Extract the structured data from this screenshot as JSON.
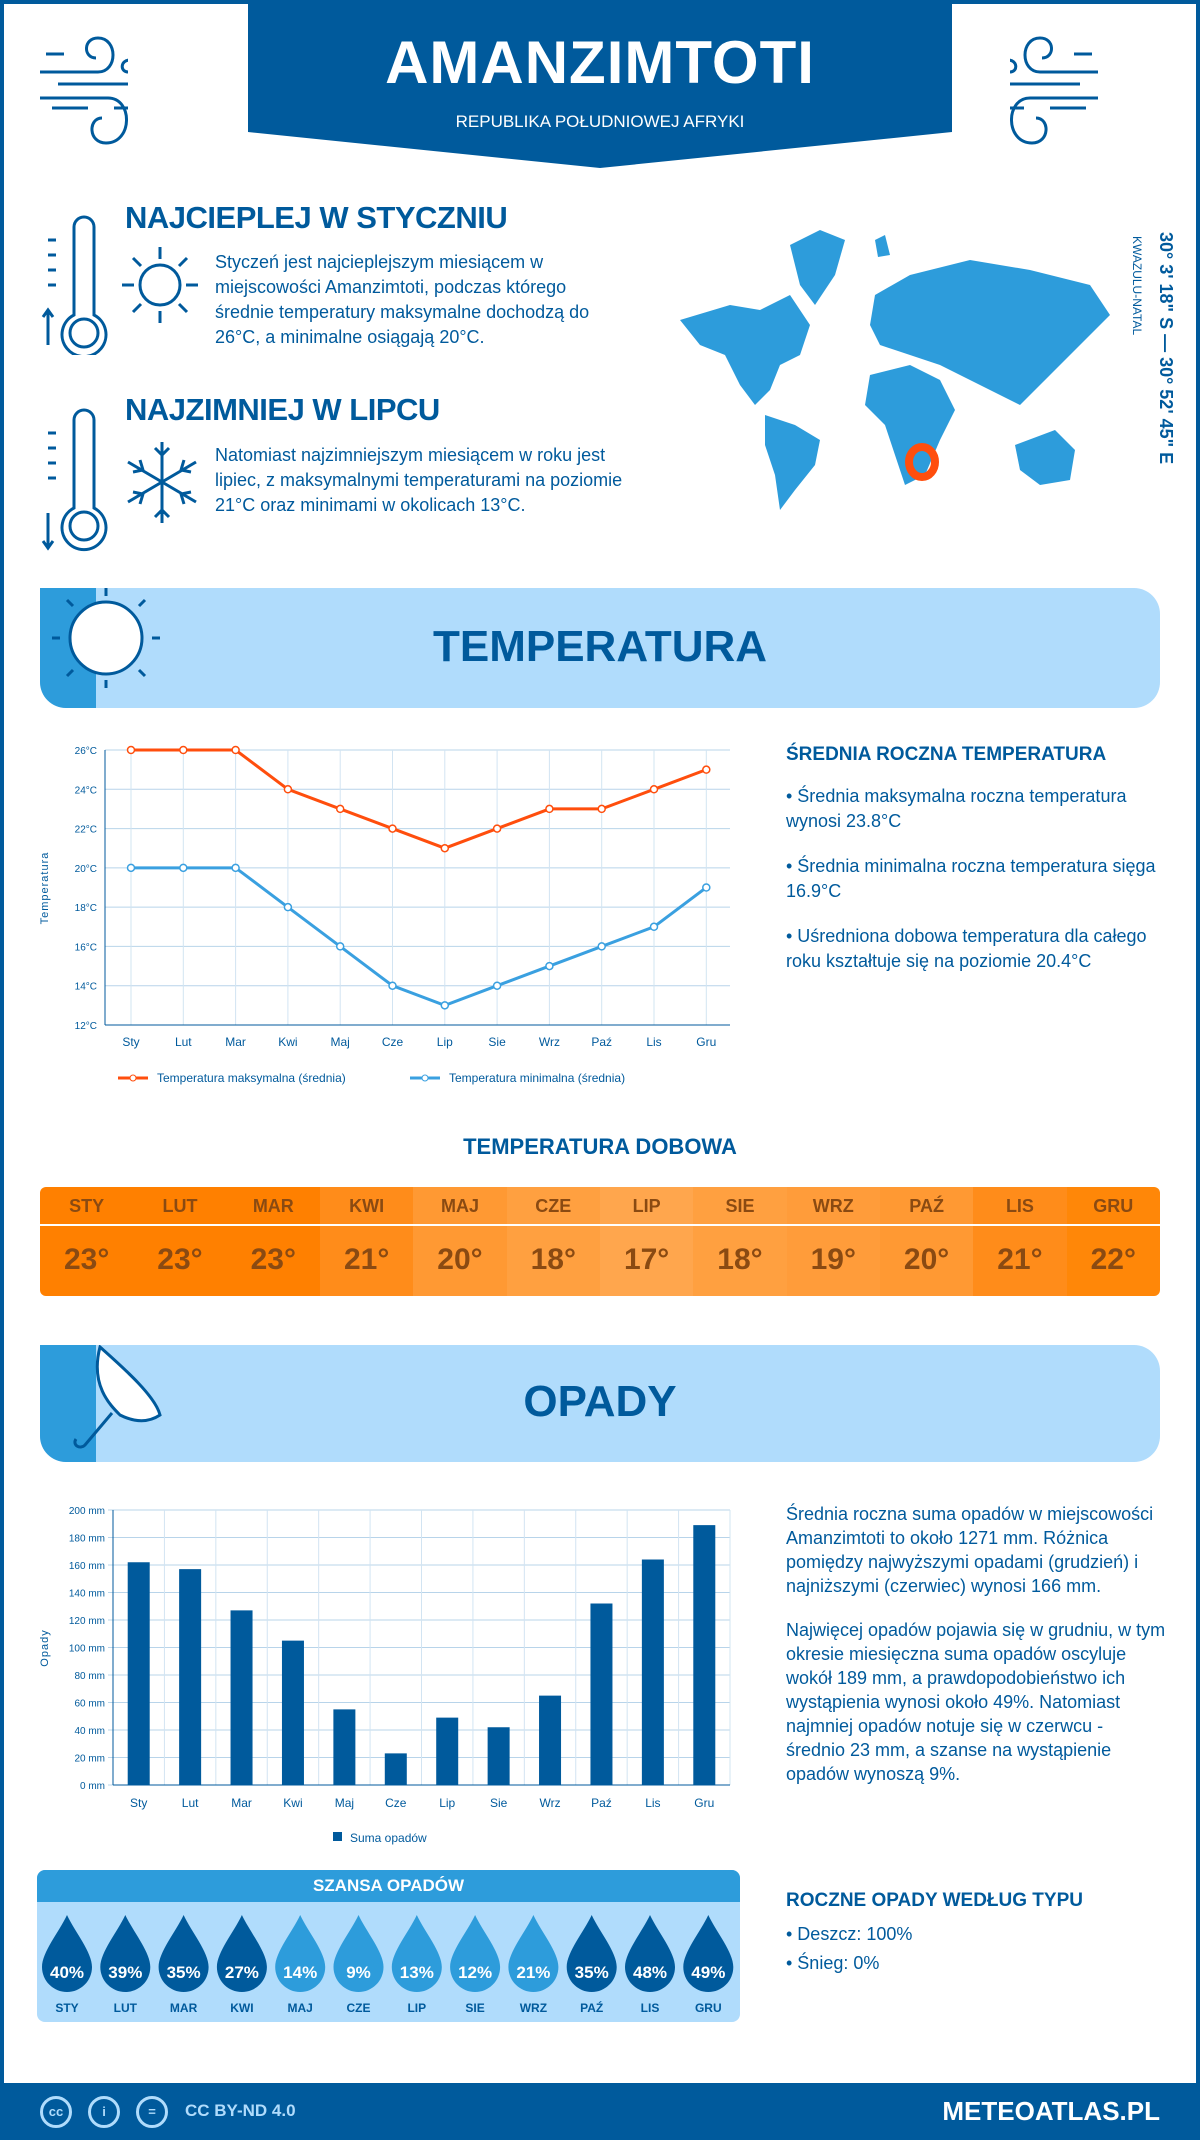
{
  "header": {
    "title": "AMANZIMTOTI",
    "subtitle": "REPUBLIKA POŁUDNIOWEJ AFRYKI"
  },
  "location": {
    "coordinates": "30° 3' 18\" S — 30° 52' 45\" E",
    "region": "KWAZULU-NATAL",
    "marker_color": "#ff4e0d"
  },
  "warmest": {
    "heading": "NAJCIEPLEJ W STYCZNIU",
    "text": "Styczeń jest najcieplejszym miesiącem w miejscowości Amanzimtoti, podczas którego średnie temperatury maksymalne dochodzą do 26°C, a minimalne osiągają 20°C."
  },
  "coldest": {
    "heading": "NAJZIMNIEJ W LIPCU",
    "text": "Natomiast najzimniejszym miesiącem w roku jest lipiec, z maksymalnymi temperaturami na poziomie 21°C oraz minimami w okolicach 13°C."
  },
  "temperature": {
    "banner": "TEMPERATURA",
    "side_heading": "ŚREDNIA ROCZNA TEMPERATURA",
    "bullets": [
      "• Średnia maksymalna roczna temperatura wynosi 23.8°C",
      "• Średnia minimalna roczna temperatura sięga 16.9°C",
      "• Uśredniona dobowa temperatura dla całego roku kształtuje się na poziomie 20.4°C"
    ],
    "daily_heading": "TEMPERATURA DOBOWA",
    "daily": [
      {
        "m": "STY",
        "v": "23°",
        "color": "#ff8000"
      },
      {
        "m": "LUT",
        "v": "23°",
        "color": "#ff8000"
      },
      {
        "m": "MAR",
        "v": "23°",
        "color": "#ff8000"
      },
      {
        "m": "KWI",
        "v": "21°",
        "color": "#ff8c1a"
      },
      {
        "m": "MAJ",
        "v": "20°",
        "color": "#ff9933"
      },
      {
        "m": "CZE",
        "v": "18°",
        "color": "#ffa040"
      },
      {
        "m": "LIP",
        "v": "17°",
        "color": "#ffa64d"
      },
      {
        "m": "SIE",
        "v": "18°",
        "color": "#ffa040"
      },
      {
        "m": "WRZ",
        "v": "19°",
        "color": "#ff9c3a"
      },
      {
        "m": "PAŹ",
        "v": "20°",
        "color": "#ff9933"
      },
      {
        "m": "LIS",
        "v": "21°",
        "color": "#ff8c1a"
      },
      {
        "m": "GRU",
        "v": "22°",
        "color": "#ff8708"
      }
    ]
  },
  "precip": {
    "banner": "OPADY",
    "text1": "Średnia roczna suma opadów w miejscowości Amanzimtoti to około 1271 mm. Różnica pomiędzy najwyższymi opadami (grudzień) i najniższymi (czerwiec) wynosi 166 mm.",
    "text2": "Najwięcej opadów pojawia się w grudniu, w tym okresie miesięczna suma opadów oscyluje wokół 189 mm, a prawdopodobieństwo ich wystąpienia wynosi około 49%. Natomiast najmniej opadów notuje się w czerwcu - średnio 23 mm, a szanse na wystąpienie opadów wynoszą 9%.",
    "type_heading": "ROCZNE OPADY WEDŁUG TYPU",
    "types": [
      "• Deszcz: 100%",
      "• Śnieg: 0%"
    ],
    "chance_heading": "SZANSA OPADÓW",
    "chance": [
      {
        "m": "STY",
        "v": "40%"
      },
      {
        "m": "LUT",
        "v": "39%"
      },
      {
        "m": "MAR",
        "v": "35%"
      },
      {
        "m": "KWI",
        "v": "27%"
      },
      {
        "m": "MAJ",
        "v": "14%"
      },
      {
        "m": "CZE",
        "v": "9%"
      },
      {
        "m": "LIP",
        "v": "13%"
      },
      {
        "m": "SIE",
        "v": "12%"
      },
      {
        "m": "WRZ",
        "v": "21%"
      },
      {
        "m": "PAŹ",
        "v": "35%"
      },
      {
        "m": "LIS",
        "v": "48%"
      },
      {
        "m": "GRU",
        "v": "49%"
      }
    ],
    "drop_colors": {
      "high": "#005a9c",
      "low": "#2d9cdb"
    }
  },
  "chart_data": [
    {
      "type": "line",
      "ylabel": "Temperatura",
      "categories": [
        "Sty",
        "Lut",
        "Mar",
        "Kwi",
        "Maj",
        "Cze",
        "Lip",
        "Sie",
        "Wrz",
        "Paź",
        "Lis",
        "Gru"
      ],
      "yticks": [
        "12°C",
        "14°C",
        "16°C",
        "18°C",
        "20°C",
        "22°C",
        "24°C",
        "26°C"
      ],
      "ylim": [
        12,
        26
      ],
      "grid": true,
      "legend": "bottom",
      "series": [
        {
          "name": "Temperatura maksymalna (średnia)",
          "color": "#ff4e0d",
          "values": [
            26,
            26,
            26,
            24,
            23,
            22,
            21,
            22,
            23,
            23,
            24,
            25
          ]
        },
        {
          "name": "Temperatura minimalna (średnia)",
          "color": "#3aa0e0",
          "values": [
            20,
            20,
            20,
            18,
            16,
            14,
            13,
            14,
            15,
            16,
            17,
            19
          ]
        }
      ]
    },
    {
      "type": "bar",
      "ylabel": "Opady",
      "categories": [
        "Sty",
        "Lut",
        "Mar",
        "Kwi",
        "Maj",
        "Cze",
        "Lip",
        "Sie",
        "Wrz",
        "Paź",
        "Lis",
        "Gru"
      ],
      "yticks": [
        "0 mm",
        "20 mm",
        "40 mm",
        "60 mm",
        "80 mm",
        "100 mm",
        "120 mm",
        "140 mm",
        "160 mm",
        "180 mm",
        "200 mm"
      ],
      "ylim": [
        0,
        200
      ],
      "grid": true,
      "legend": "bottom",
      "series": [
        {
          "name": "Suma opadów",
          "color": "#005a9c",
          "values": [
            162,
            157,
            127,
            105,
            55,
            23,
            49,
            42,
            65,
            132,
            164,
            189
          ]
        }
      ]
    }
  ],
  "footer": {
    "license": "CC BY-ND 4.0",
    "site": "METEOATLAS.PL",
    "icons": [
      "cc-icon",
      "by-icon",
      "nd-icon"
    ]
  }
}
